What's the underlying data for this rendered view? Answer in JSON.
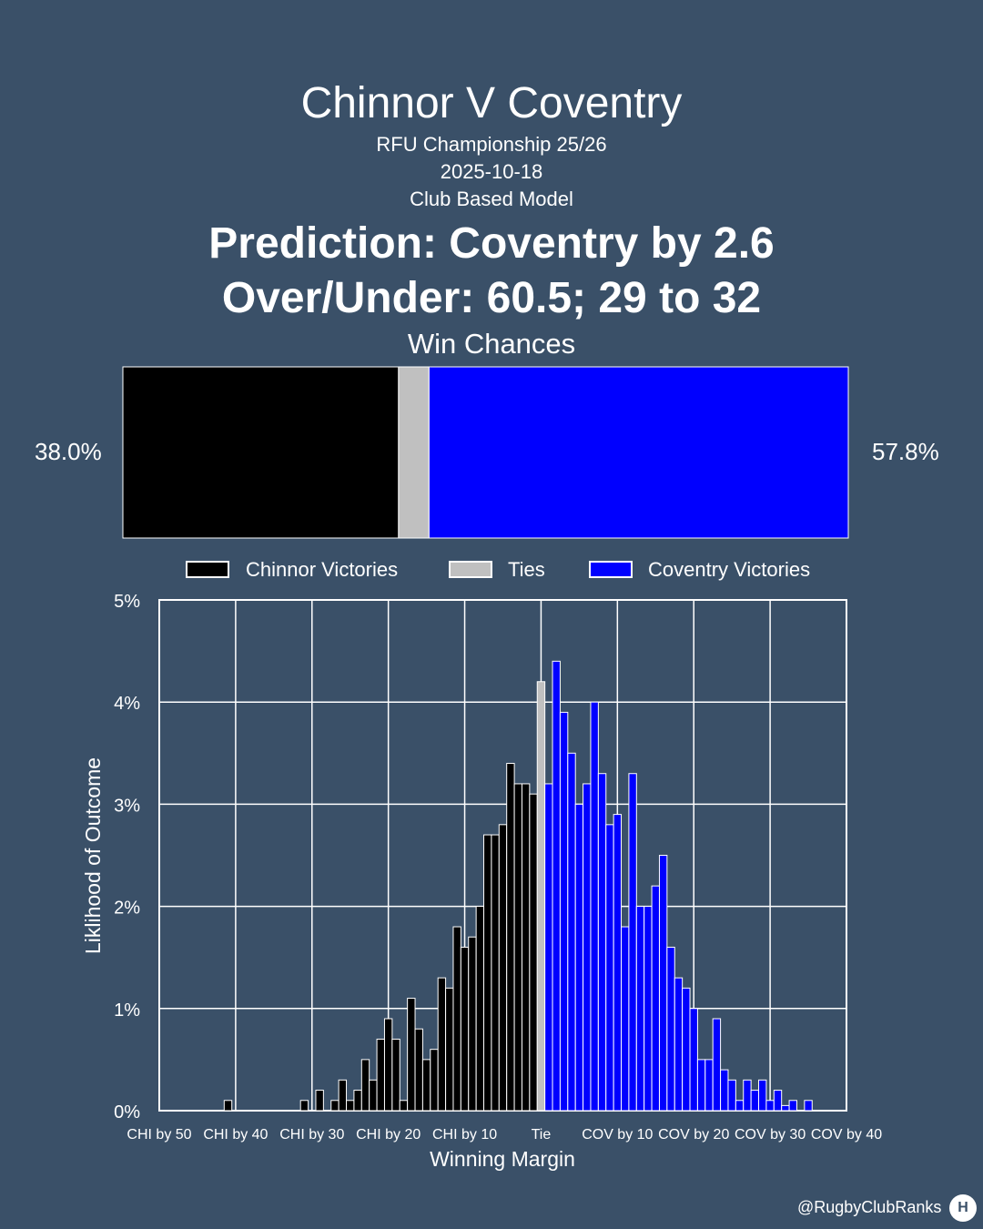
{
  "header": {
    "title": "Chinnor V Coventry",
    "competition": "RFU Championship 25/26",
    "date": "2025-10-18",
    "model": "Club Based Model",
    "prediction": "Prediction: Coventry by 2.6",
    "over_under": "Over/Under: 60.5; 29 to 32",
    "win_chances_label": "Win Chances"
  },
  "win_chances": {
    "home_pct_label": "38.0%",
    "away_pct_label": "57.8%",
    "home": 38.0,
    "tie": 4.2,
    "away": 57.8,
    "colors": {
      "home": "#000000",
      "tie": "#c0c0c0",
      "away": "#0000ff"
    }
  },
  "legend": {
    "home_label": "Chinnor Victories",
    "tie_label": "Ties",
    "away_label": "Coventry Victories"
  },
  "chart_data": {
    "type": "bar",
    "xlabel": "Winning Margin",
    "ylabel": "Liklihood of Outcome",
    "xlim": [
      -50,
      40
    ],
    "ylim": [
      0,
      5
    ],
    "grid": true,
    "x_ticks": [
      {
        "value": -50,
        "label": "CHI by 50"
      },
      {
        "value": -40,
        "label": "CHI by 40"
      },
      {
        "value": -30,
        "label": "CHI by 30"
      },
      {
        "value": -20,
        "label": "CHI by 20"
      },
      {
        "value": -10,
        "label": "CHI by 10"
      },
      {
        "value": 0,
        "label": "Tie"
      },
      {
        "value": 10,
        "label": "COV by 10"
      },
      {
        "value": 20,
        "label": "COV by 20"
      },
      {
        "value": 30,
        "label": "COV by 30"
      },
      {
        "value": 40,
        "label": "COV by 40"
      }
    ],
    "y_ticks": [
      {
        "value": 0,
        "label": "0%"
      },
      {
        "value": 1,
        "label": "1%"
      },
      {
        "value": 2,
        "label": "2%"
      },
      {
        "value": 3,
        "label": "3%"
      },
      {
        "value": 4,
        "label": "4%"
      },
      {
        "value": 5,
        "label": "5%"
      }
    ],
    "series": [
      {
        "name": "Chinnor Victories",
        "color": "#000000",
        "x": [
          -41,
          -31,
          -29,
          -27,
          -26,
          -25,
          -24,
          -23,
          -22,
          -21,
          -20,
          -19,
          -18,
          -17,
          -16,
          -15,
          -14,
          -13,
          -12,
          -11,
          -10,
          -9,
          -8,
          -7,
          -6,
          -5,
          -4,
          -3,
          -2,
          -1
        ],
        "values": [
          0.1,
          0.1,
          0.2,
          0.1,
          0.3,
          0.1,
          0.2,
          0.5,
          0.3,
          0.7,
          0.9,
          0.7,
          0.1,
          1.1,
          0.8,
          0.5,
          0.6,
          1.3,
          1.2,
          1.8,
          1.6,
          1.7,
          2.0,
          2.7,
          2.7,
          2.8,
          3.4,
          3.2,
          3.2,
          3.1
        ]
      },
      {
        "name": "Ties",
        "color": "#c0c0c0",
        "x": [
          0
        ],
        "values": [
          4.2
        ]
      },
      {
        "name": "Coventry Victories",
        "color": "#0000ff",
        "x": [
          1,
          2,
          3,
          4,
          5,
          6,
          7,
          8,
          9,
          10,
          11,
          12,
          13,
          14,
          15,
          16,
          17,
          18,
          19,
          20,
          21,
          22,
          23,
          24,
          25,
          26,
          27,
          28,
          29,
          30,
          31,
          32,
          33,
          35
        ],
        "values": [
          3.2,
          4.4,
          3.9,
          3.5,
          3.0,
          3.2,
          4.0,
          3.3,
          2.8,
          2.9,
          1.8,
          3.3,
          2.0,
          2.0,
          2.2,
          2.5,
          1.6,
          1.3,
          1.2,
          1.0,
          0.5,
          0.5,
          0.9,
          0.4,
          0.3,
          0.1,
          0.3,
          0.2,
          0.3,
          0.1,
          0.2,
          0.05,
          0.1,
          0.1
        ]
      }
    ]
  },
  "footer": {
    "credit": "@RugbyClubRanks",
    "logo_glyph": "H"
  }
}
